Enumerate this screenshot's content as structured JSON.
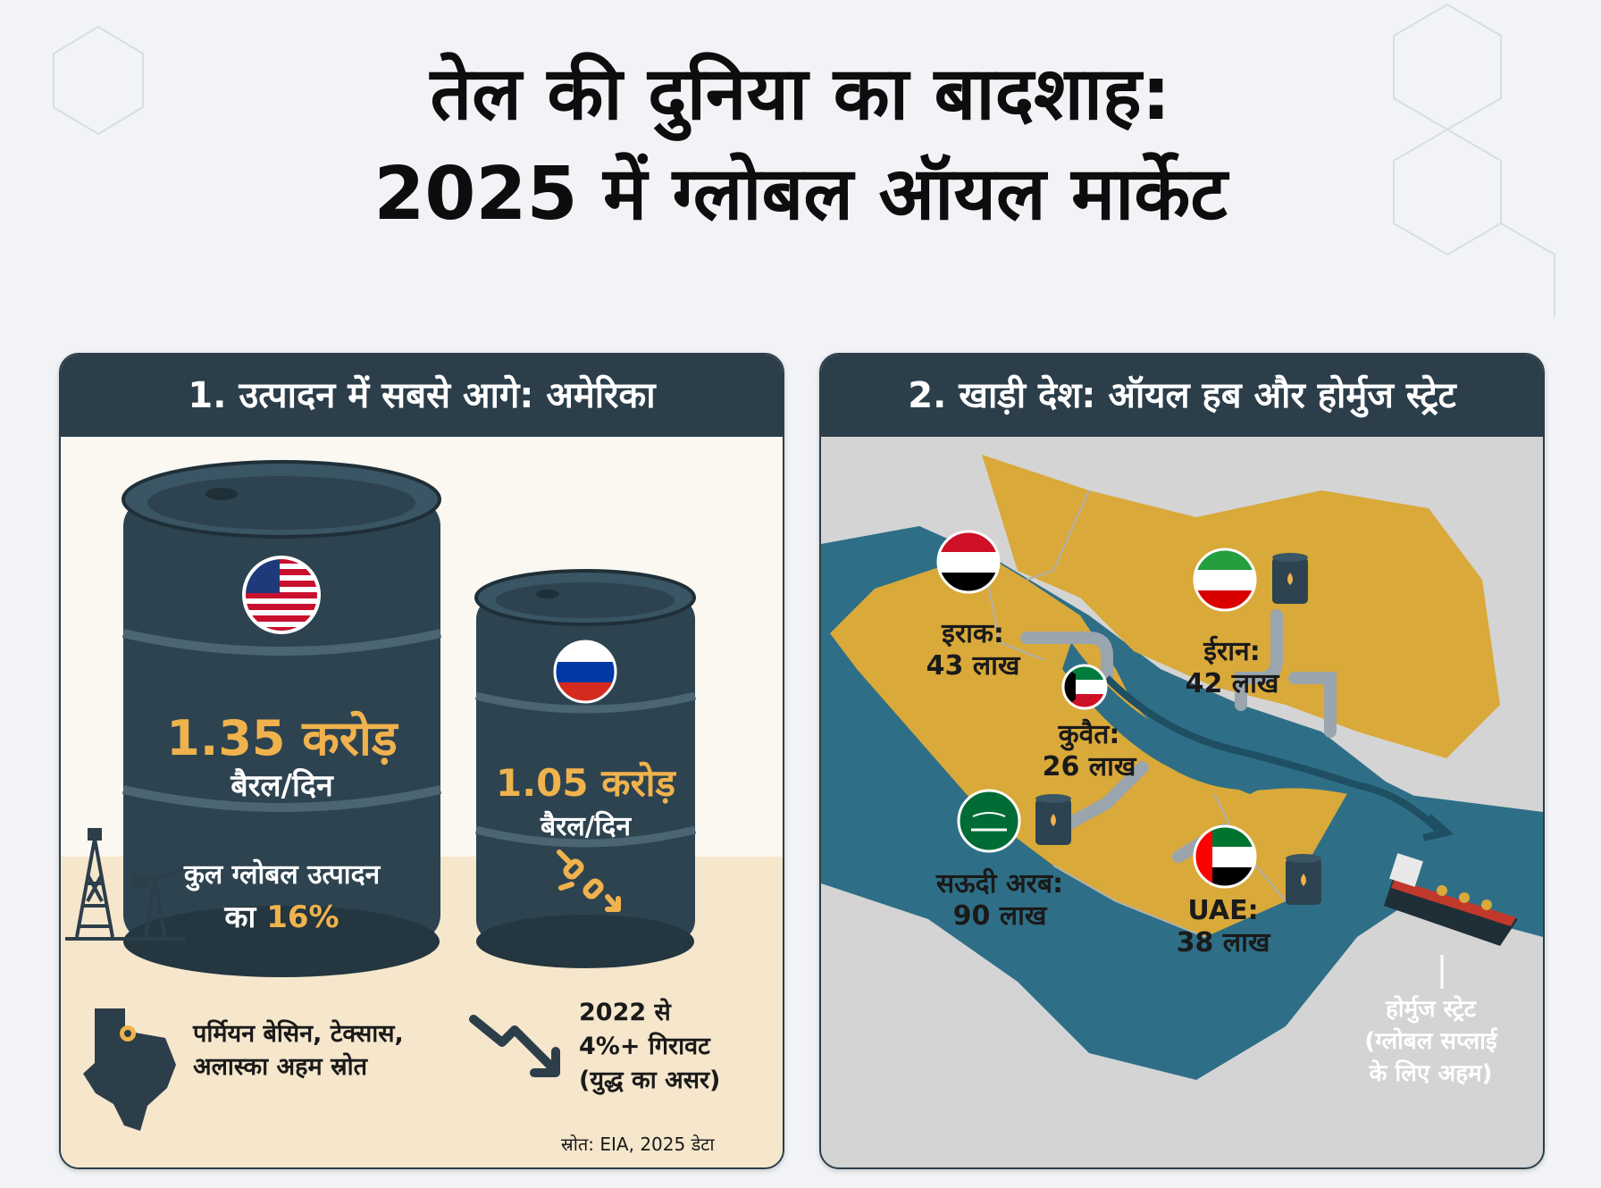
{
  "title": {
    "line1": "तेल की दुनिया का बादशाह:",
    "line2": "2025 में ग्लोबल ऑयल मार्केट"
  },
  "left_panel": {
    "heading": "1. उत्पादन में सबसे आगे: अमेरिका",
    "usa": {
      "flag": "usa-flag",
      "value": "1.35 करोड़",
      "unit": "बैरल/दिन",
      "share_text": "कुल ग्लोबल उत्पादन",
      "share_prefix": "का",
      "share_value": "16%"
    },
    "russia": {
      "flag": "russia-flag",
      "value": "1.05 करोड़",
      "unit": "बैरल/दिन"
    },
    "sources_line1": "पर्मियन बेसिन, टेक्सास,",
    "sources_line2": "अलास्का अहम स्रोत",
    "decline_line1": "2022 से",
    "decline_line2": "4%+ गिरावट",
    "decline_line3": "(युद्ध का असर)",
    "source_note": "स्रोत: EIA, 2025 डेटा",
    "icons": [
      "oil-derrick-icon",
      "pumpjack-icon",
      "texas-map-icon",
      "trend-down-icon",
      "broken-chain-icon"
    ]
  },
  "right_panel": {
    "heading": "2. खाड़ी देश: ऑयल हब और होर्मुज स्ट्रेट",
    "countries": [
      {
        "name": "इराक:",
        "value": "43 लाख"
      },
      {
        "name": "ईरान:",
        "value": "42 लाख"
      },
      {
        "name": "कुवैत:",
        "value": "26 लाख"
      },
      {
        "name": "सऊदी अरब:",
        "value": "90 लाख"
      },
      {
        "name": "UAE:",
        "value": "38 लाख"
      }
    ],
    "strait_line1": "होर्मुज स्ट्रेट",
    "strait_line2": "(ग्लोबल सप्लाई",
    "strait_line3": "के लिए अहम)",
    "colors": {
      "land": "#d9a93a",
      "sea": "#2e6f87",
      "other_land": "#d4d4d4"
    }
  }
}
